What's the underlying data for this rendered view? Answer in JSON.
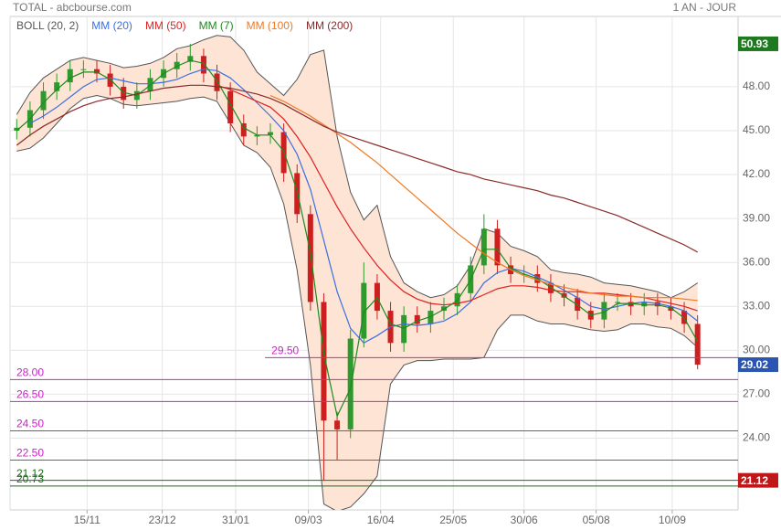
{
  "chart_data": {
    "type": "candlestick",
    "title": "TOTAL - abcbourse.com",
    "period": "1 AN - JOUR",
    "x": [
      0,
      1,
      2,
      3,
      4,
      5,
      6,
      7,
      8,
      9,
      10,
      11,
      12,
      13,
      14,
      15,
      16,
      17,
      18,
      19,
      20,
      21,
      22,
      23,
      24,
      25,
      26,
      27,
      28,
      29,
      30,
      31,
      32,
      33,
      34,
      35,
      36,
      37,
      38,
      39,
      40,
      41,
      42,
      43,
      44,
      45,
      46,
      47,
      48,
      49,
      50,
      51
    ],
    "open": [
      45.0,
      45.2,
      46.4,
      47.7,
      48.3,
      49.2,
      49.2,
      48.9,
      48.0,
      47.1,
      47.7,
      48.6,
      49.2,
      49.7,
      50.1,
      48.9,
      47.7,
      45.5,
      44.6,
      44.7,
      44.9,
      42.1,
      39.3,
      33.3,
      25.2,
      24.6,
      30.8,
      34.6,
      32.7,
      30.5,
      32.4,
      31.8,
      32.7,
      33.0,
      33.9,
      35.8,
      38.3,
      35.8,
      35.2,
      35.2,
      34.6,
      33.9,
      33.6,
      32.7,
      32.1,
      33.3,
      33.3,
      33.0,
      33.3,
      33.0,
      32.7,
      31.8
    ],
    "high": [
      45.8,
      47.0,
      48.3,
      48.9,
      49.8,
      49.8,
      49.8,
      49.5,
      48.6,
      48.3,
      49.2,
      49.8,
      50.3,
      50.93,
      50.6,
      49.5,
      48.3,
      46.1,
      45.3,
      45.5,
      45.5,
      42.7,
      39.9,
      33.9,
      25.8,
      31.4,
      36.0,
      35.2,
      33.3,
      33.0,
      33.0,
      33.3,
      33.6,
      34.5,
      36.4,
      39.3,
      38.9,
      36.4,
      35.8,
      35.8,
      35.2,
      34.5,
      34.2,
      33.3,
      33.9,
      33.9,
      33.9,
      33.9,
      33.9,
      33.6,
      33.3,
      32.4
    ],
    "low": [
      44.4,
      44.6,
      45.8,
      47.1,
      47.7,
      48.6,
      48.3,
      47.4,
      46.5,
      46.5,
      47.1,
      48.0,
      48.6,
      49.1,
      48.3,
      47.1,
      44.9,
      44.0,
      44.0,
      44.1,
      41.5,
      38.7,
      32.7,
      21.12,
      22.5,
      24.0,
      30.2,
      32.1,
      29.9,
      29.9,
      31.2,
      31.2,
      32.1,
      32.4,
      33.3,
      35.2,
      35.2,
      34.6,
      34.6,
      34.0,
      33.3,
      33.0,
      32.1,
      31.5,
      31.5,
      32.7,
      32.4,
      32.4,
      32.4,
      32.1,
      31.2,
      28.7
    ],
    "close": [
      45.2,
      46.4,
      47.7,
      48.3,
      49.2,
      49.2,
      48.9,
      48.0,
      47.1,
      47.7,
      48.6,
      49.2,
      49.7,
      50.1,
      48.9,
      47.7,
      45.5,
      44.6,
      44.7,
      44.9,
      42.1,
      39.3,
      33.3,
      25.2,
      24.6,
      30.8,
      34.6,
      32.7,
      30.5,
      32.4,
      31.8,
      32.7,
      33.0,
      33.9,
      35.8,
      38.3,
      35.8,
      35.2,
      35.2,
      34.6,
      33.9,
      33.6,
      32.7,
      32.1,
      33.3,
      33.3,
      33.0,
      33.3,
      33.0,
      32.7,
      31.8,
      29.02
    ],
    "up_color": "#2e9a2e",
    "down_color": "#cc2020",
    "bollinger": {
      "name": "BOLL (20, 2)",
      "color": "#555555",
      "fill": "#fde4d4",
      "upper": [
        46.1,
        47.6,
        48.6,
        49.2,
        49.8,
        50.0,
        49.8,
        49.6,
        49.3,
        49.4,
        49.6,
        50.0,
        50.6,
        50.8,
        51.2,
        51.5,
        51.4,
        50.5,
        49.0,
        48.2,
        47.4,
        48.5,
        50.2,
        50.5,
        44.6,
        40.8,
        38.9,
        39.9,
        36.4,
        34.6,
        34.0,
        33.6,
        33.8,
        34.4,
        35.8,
        38.3,
        38.0,
        37.1,
        36.8,
        36.4,
        35.5,
        35.3,
        35.2,
        35.0,
        34.6,
        34.5,
        34.4,
        34.2,
        34.0,
        33.6,
        34.0,
        34.6
      ],
      "lower": [
        43.6,
        43.8,
        44.5,
        45.5,
        46.5,
        47.2,
        47.4,
        47.2,
        46.8,
        46.7,
        46.8,
        46.9,
        47.0,
        47.2,
        47.3,
        47.0,
        45.5,
        44.0,
        43.5,
        42.5,
        40.0,
        35.5,
        29.0,
        19.5,
        19.0,
        19.3,
        20.2,
        21.4,
        27.7,
        29.0,
        29.3,
        29.3,
        29.4,
        29.4,
        29.4,
        29.5,
        31.4,
        32.4,
        32.4,
        32.0,
        31.8,
        31.8,
        31.6,
        31.4,
        31.3,
        31.4,
        31.8,
        31.8,
        31.6,
        31.5,
        31.0,
        30.2
      ]
    },
    "series": [
      {
        "name": "MM (20)",
        "color": "#3b6fe0",
        "values": [
          null,
          45.5,
          46.0,
          46.6,
          47.3,
          48.0,
          48.5,
          48.6,
          48.4,
          48.2,
          48.2,
          48.3,
          48.5,
          48.9,
          49.2,
          49.1,
          48.6,
          47.8,
          46.9,
          46.0,
          45.0,
          43.4,
          41.0,
          37.5,
          34.0,
          31.5,
          30.5,
          31.0,
          31.6,
          31.8,
          31.7,
          31.8,
          32.0,
          32.5,
          33.3,
          34.6,
          35.3,
          35.6,
          35.4,
          35.0,
          34.6,
          34.1,
          33.6,
          33.0,
          32.8,
          33.0,
          33.2,
          33.3,
          33.2,
          33.0,
          32.7,
          32.0
        ]
      },
      {
        "name": "MM (50)",
        "color": "#e02020",
        "values": [
          null,
          null,
          null,
          null,
          null,
          null,
          null,
          null,
          null,
          null,
          null,
          null,
          null,
          null,
          null,
          48.1,
          47.8,
          47.4,
          47.0,
          46.6,
          45.8,
          44.6,
          43.2,
          41.5,
          39.8,
          38.3,
          37.0,
          35.8,
          34.8,
          34.0,
          33.5,
          33.2,
          33.1,
          33.2,
          33.4,
          33.8,
          34.2,
          34.4,
          34.4,
          34.3,
          34.1,
          34.0,
          34.0,
          33.9,
          33.9,
          33.8,
          33.7,
          33.6,
          33.4,
          33.2,
          33.0,
          32.7
        ]
      },
      {
        "name": "MM (7)",
        "color": "#1e8a1e",
        "values": [
          45.0,
          45.8,
          46.9,
          47.8,
          48.6,
          49.0,
          49.0,
          48.5,
          47.6,
          47.4,
          48.1,
          48.9,
          49.4,
          49.8,
          49.6,
          48.4,
          46.8,
          45.2,
          44.7,
          44.7,
          43.6,
          40.9,
          36.7,
          29.8,
          25.5,
          27.4,
          32.6,
          33.6,
          31.8,
          31.5,
          32.0,
          32.3,
          32.8,
          33.4,
          34.8,
          36.9,
          36.9,
          35.6,
          35.2,
          34.9,
          34.3,
          33.7,
          33.1,
          32.4,
          32.6,
          33.2,
          33.2,
          33.1,
          33.1,
          32.9,
          32.2,
          30.6
        ]
      },
      {
        "name": "MM (100)",
        "color": "#f07820",
        "values": [
          null,
          null,
          null,
          null,
          null,
          null,
          null,
          null,
          null,
          null,
          null,
          null,
          null,
          null,
          null,
          null,
          null,
          null,
          null,
          47.4,
          47.0,
          46.5,
          46.0,
          45.4,
          44.8,
          44.2,
          43.5,
          42.8,
          42.0,
          41.2,
          40.4,
          39.6,
          38.8,
          38.0,
          37.3,
          36.6,
          36.0,
          35.5,
          35.1,
          34.8,
          34.5,
          34.3,
          34.1,
          33.9,
          33.8,
          33.7,
          33.7,
          33.6,
          33.6,
          33.6,
          33.5,
          33.4
        ]
      },
      {
        "name": "MM (200)",
        "color": "#8b2a2a",
        "values": [
          44.0,
          44.7,
          45.3,
          45.8,
          46.3,
          46.7,
          47.0,
          47.2,
          47.3,
          47.5,
          47.7,
          47.9,
          48.0,
          48.1,
          48.1,
          48.0,
          47.9,
          47.7,
          47.5,
          47.2,
          46.8,
          46.3,
          45.8,
          45.3,
          44.9,
          44.6,
          44.3,
          44.0,
          43.7,
          43.4,
          43.1,
          42.8,
          42.5,
          42.2,
          42.0,
          41.7,
          41.5,
          41.3,
          41.1,
          40.9,
          40.6,
          40.4,
          40.1,
          39.8,
          39.5,
          39.2,
          38.8,
          38.4,
          38.0,
          37.6,
          37.2,
          36.7
        ]
      }
    ],
    "levels": [
      {
        "value": 29.5,
        "label": "29.50",
        "color": "#cc22cc",
        "from": 18.6
      },
      {
        "value": 28,
        "label": "28.00",
        "color": "#cc22cc"
      },
      {
        "value": 26.5,
        "label": "26.50",
        "color": "#cc22cc"
      },
      {
        "value": 24.5,
        "label": "24.50",
        "color": "#cc22cc"
      },
      {
        "value": 22.5,
        "label": "22.50",
        "color": "#cc22cc"
      },
      {
        "value": 21.12,
        "label": "21.12",
        "color": "#1e6e1e"
      },
      {
        "value": 20.73,
        "label": "20.73",
        "color": "#1e6e1e"
      }
    ],
    "price_tags": [
      {
        "value": 50.93,
        "color": "#1e7a1e"
      },
      {
        "value": 29.02,
        "color": "#2a55b0"
      },
      {
        "value": 21.12,
        "color": "#c01818"
      }
    ],
    "xlim": [
      -0.5,
      51.5
    ],
    "ylim": [
      19.1,
      52.8
    ],
    "xticks": [
      {
        "value": 5.27,
        "label": "15/11"
      },
      {
        "value": 10.9,
        "label": "23/12"
      },
      {
        "value": 16.4,
        "label": "31/01"
      },
      {
        "value": 21.85,
        "label": "09/03"
      },
      {
        "value": 27.26,
        "label": "16/04"
      },
      {
        "value": 32.7,
        "label": "25/05"
      },
      {
        "value": 38.0,
        "label": "30/06"
      },
      {
        "value": 43.4,
        "label": "05/08"
      },
      {
        "value": 49.1,
        "label": "10/09"
      }
    ],
    "yticks": [
      {
        "value": 24,
        "label": "24.00"
      },
      {
        "value": 27,
        "label": "27.00"
      },
      {
        "value": 30,
        "label": "30.00"
      },
      {
        "value": 33,
        "label": "33.00"
      },
      {
        "value": 36,
        "label": "36.00"
      },
      {
        "value": 39,
        "label": "39.00"
      },
      {
        "value": 42,
        "label": "42.00"
      },
      {
        "value": 45,
        "label": "45.00"
      },
      {
        "value": 48,
        "label": "48.00"
      }
    ],
    "grid": true
  }
}
